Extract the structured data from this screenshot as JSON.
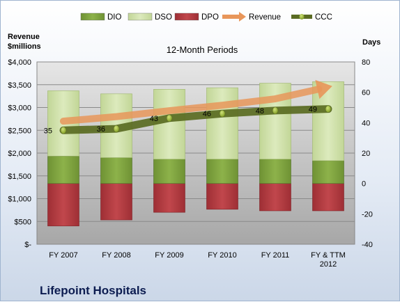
{
  "company_name": "Lifepoint Hospitals",
  "chart_data": {
    "type": "bar",
    "subtitle": "12-Month Periods",
    "categories": [
      "FY 2007",
      "FY 2008",
      "FY 2009",
      "FY 2010",
      "FY 2011",
      "FY & TTM 2012"
    ],
    "left_axis": {
      "label_line1": "Revenue",
      "label_line2": "$millions",
      "range": [
        0,
        4000
      ],
      "ticks": [
        0,
        500,
        1000,
        1500,
        2000,
        2500,
        3000,
        3500,
        4000
      ],
      "tick_labels": [
        "$-",
        "$500",
        "$1,000",
        "$1,500",
        "$2,000",
        "$2,500",
        "$3,000",
        "$3,500",
        "$4,000"
      ]
    },
    "right_axis": {
      "label": "Days",
      "range": [
        -40,
        80
      ],
      "ticks": [
        -40,
        -20,
        0,
        20,
        40,
        60,
        80
      ],
      "tick_labels": [
        "-40",
        "-20",
        "0",
        "20",
        "40",
        "60",
        "80"
      ]
    },
    "series": [
      {
        "name": "DIO",
        "axis": "right",
        "kind": "stacked-bar",
        "color": "#7ea33c",
        "values": [
          18,
          17,
          16,
          16,
          16,
          15
        ]
      },
      {
        "name": "DSO",
        "axis": "right",
        "kind": "stacked-bar",
        "color": "#cfe0a6",
        "values": [
          43,
          42,
          46,
          47,
          50,
          52
        ]
      },
      {
        "name": "DPO",
        "axis": "right",
        "kind": "negative-bar",
        "color": "#b53a3f",
        "values": [
          -28,
          -24,
          -19,
          -17,
          -18,
          -18
        ]
      },
      {
        "name": "Revenue",
        "axis": "left",
        "kind": "arrow-line",
        "color": "#e8965a",
        "values": [
          2700,
          2800,
          2930,
          3050,
          3190,
          3450
        ]
      },
      {
        "name": "CCC",
        "axis": "right",
        "kind": "line-markers",
        "color": "#5a6b22",
        "values": [
          35,
          36,
          43,
          46,
          48,
          49
        ]
      }
    ],
    "grid": true,
    "legend_position": "top"
  }
}
